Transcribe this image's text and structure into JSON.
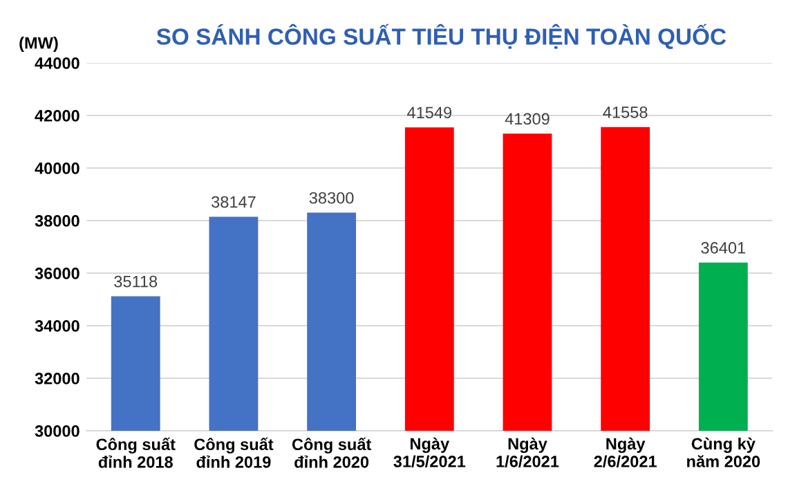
{
  "chart_data": {
    "type": "bar",
    "title": "SO SÁNH CÔNG SUẤT TIÊU THỤ ĐIỆN TOÀN QUỐC",
    "ylabel": "(MW)",
    "categories": [
      "Công suất\nđỉnh 2018",
      "Công suất\nđỉnh 2019",
      "Công suất\nđỉnh 2020",
      "Ngày\n31/5/2021",
      "Ngày\n1/6/2021",
      "Ngày\n2/6/2021",
      "Cùng kỳ\nnăm 2020"
    ],
    "values": [
      35118,
      38147,
      38300,
      41549,
      41309,
      41558,
      36401
    ],
    "colors": [
      "#4472c4",
      "#4472c4",
      "#4472c4",
      "#ff0000",
      "#ff0000",
      "#ff0000",
      "#00b050"
    ],
    "ylim": [
      30000,
      44000
    ],
    "yticks": [
      30000,
      32000,
      34000,
      36000,
      38000,
      40000,
      42000,
      44000
    ],
    "grid": "y",
    "data_labels": true
  }
}
